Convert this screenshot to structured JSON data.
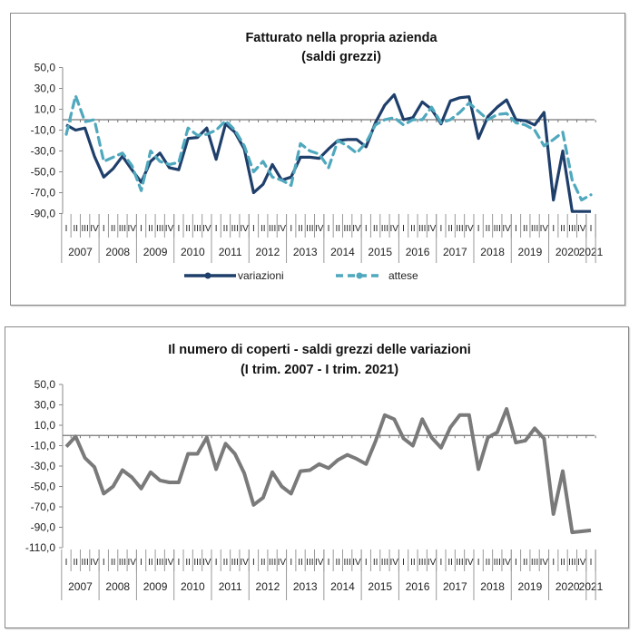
{
  "chart_data": [
    {
      "type": "line",
      "title": "Fatturato nella propria azienda",
      "subtitle": "(saldi grezzi)",
      "xlabel": "",
      "ylabel": "",
      "ylim": [
        -90,
        50
      ],
      "yticks": [
        "50,0",
        "30,0",
        "10,0",
        "-10,0",
        "-30,0",
        "-50,0",
        "-70,0",
        "-90,0"
      ],
      "ytick_values": [
        50,
        30,
        10,
        -10,
        -30,
        -50,
        -70,
        -90
      ],
      "quarter_labels": [
        "I",
        "II",
        "III",
        "IV"
      ],
      "years": [
        "2007",
        "2008",
        "2009",
        "2010",
        "2011",
        "2012",
        "2013",
        "2014",
        "2015",
        "2016",
        "2017",
        "2018",
        "2019",
        "2020",
        "2021"
      ],
      "x_start": "I trim. 2007",
      "x_end": "I trim. 2021",
      "grid": false,
      "legend_position": "bottom",
      "series": [
        {
          "name": "variazioni",
          "color": "#1f3f6b",
          "style": "solid",
          "values": [
            -5,
            -10,
            -8,
            -35,
            -55,
            -47,
            -35,
            -48,
            -60,
            -40,
            -32,
            -46,
            -48,
            -18,
            -17,
            -8,
            -38,
            -4,
            -12,
            -28,
            -70,
            -62,
            -43,
            -58,
            -55,
            -36,
            -36,
            -37,
            -28,
            -20,
            -19,
            -19,
            -26,
            -3,
            14,
            24,
            0,
            2,
            17,
            10,
            -4,
            18,
            21,
            22,
            -18,
            3,
            12,
            19,
            0,
            -1,
            -5,
            7,
            -77,
            -30,
            -88,
            -88,
            -88
          ]
        },
        {
          "name": "attese",
          "color": "#4fa8bd",
          "style": "dashed",
          "values": [
            -14,
            23,
            -2,
            0,
            -40,
            -36,
            -32,
            -44,
            -68,
            -30,
            -40,
            -43,
            -41,
            -8,
            -15,
            -14,
            -10,
            -1,
            -10,
            -25,
            -50,
            -40,
            -55,
            -58,
            -63,
            -23,
            -30,
            -33,
            -46,
            -20,
            -25,
            -32,
            -22,
            -5,
            0,
            2,
            -5,
            0,
            0,
            12,
            -3,
            0,
            7,
            16,
            8,
            0,
            5,
            6,
            -3,
            -5,
            -10,
            -25,
            -19,
            -12,
            -58,
            -77,
            -72
          ]
        }
      ]
    },
    {
      "type": "line",
      "title": "Il numero di coperti - saldi grezzi delle variazioni",
      "subtitle": "(I trim. 2007 - I trim. 2021)",
      "xlabel": "",
      "ylabel": "",
      "ylim": [
        -110,
        50
      ],
      "yticks": [
        "50,0",
        "30,0",
        "10,0",
        "-10,0",
        "-30,0",
        "-50,0",
        "-70,0",
        "-90,0",
        "-110,0"
      ],
      "ytick_values": [
        50,
        30,
        10,
        -10,
        -30,
        -50,
        -70,
        -90,
        -110
      ],
      "quarter_labels": [
        "I",
        "II",
        "III",
        "IV"
      ],
      "years": [
        "2007",
        "2008",
        "2009",
        "2010",
        "2011",
        "2012",
        "2013",
        "2014",
        "2015",
        "2016",
        "2017",
        "2018",
        "2019",
        "2020",
        "2021"
      ],
      "grid": false,
      "legend_position": "none",
      "series": [
        {
          "name": "coperti",
          "color": "#7a7a7a",
          "style": "solid",
          "values": [
            -11,
            -1,
            -22,
            -31,
            -57,
            -50,
            -34,
            -41,
            -52,
            -36,
            -44,
            -46,
            -46,
            -18,
            -18,
            -2,
            -33,
            -8,
            -18,
            -37,
            -68,
            -61,
            -36,
            -50,
            -57,
            -35,
            -34,
            -28,
            -32,
            -24,
            -19,
            -23,
            -28,
            -6,
            20,
            16,
            -3,
            -10,
            16,
            -2,
            -12,
            8,
            20,
            20,
            -33,
            -2,
            3,
            26,
            -7,
            -5,
            7,
            -3,
            -77,
            -35,
            -95,
            -94,
            -93
          ]
        }
      ]
    }
  ]
}
